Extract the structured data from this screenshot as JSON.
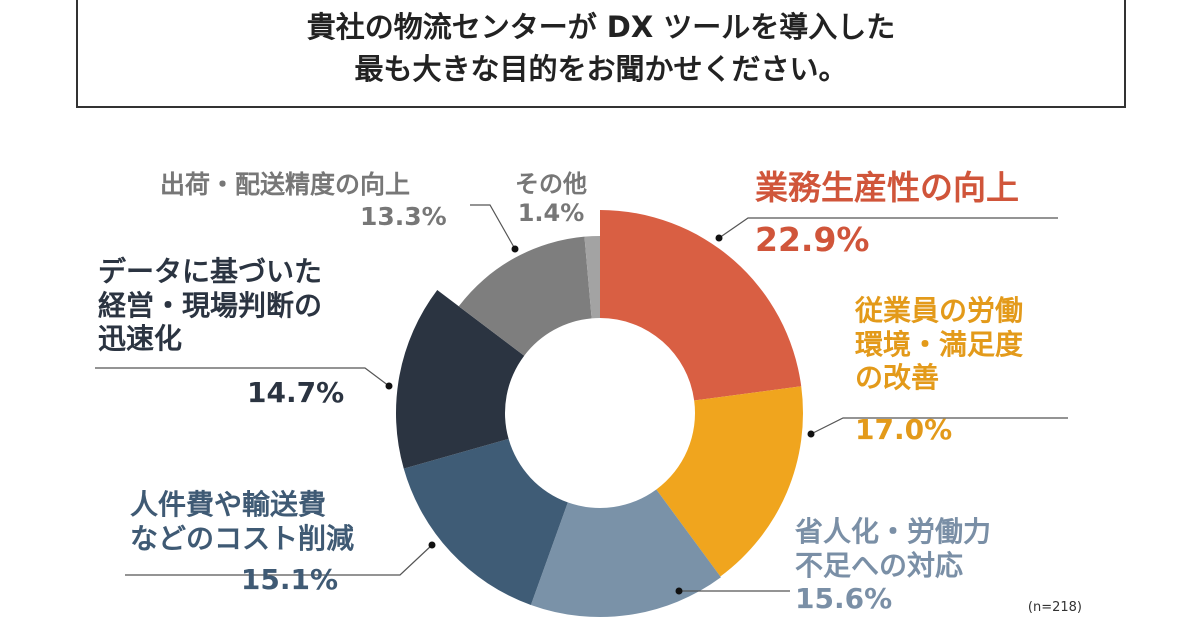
{
  "title": {
    "line1": "貴社の物流センターが DX ツールを導入した",
    "line2": "最も大きな目的をお聞かせください。"
  },
  "sample_note": "(n=218)",
  "chart_data": {
    "type": "pie",
    "donut": true,
    "title": "貴社の物流センターが DX ツールを導入した最も大きな目的をお聞かせください。",
    "unit": "%",
    "categories": [
      {
        "label_lines": [
          "業務生産性の向上"
        ],
        "value": 22.9,
        "value_text": "22.9%",
        "color": "#D95F43",
        "text_color": "#D0553A"
      },
      {
        "label_lines": [
          "従業員の労働",
          "環境・満足度",
          "の改善"
        ],
        "value": 17.0,
        "value_text": "17.0%",
        "color": "#F0A51E",
        "text_color": "#E39A1A"
      },
      {
        "label_lines": [
          "省人化・労働力",
          "不足への対応"
        ],
        "value": 15.6,
        "value_text": "15.6%",
        "color": "#7A92A8",
        "text_color": "#7A8FA6"
      },
      {
        "label_lines": [
          "人件費や輸送費",
          "などのコスト削減"
        ],
        "value": 15.1,
        "value_text": "15.1%",
        "color": "#3F5C76",
        "text_color": "#3F5A74"
      },
      {
        "label_lines": [
          "データに基づいた",
          "経営・現場判断の",
          "迅速化"
        ],
        "value": 14.7,
        "value_text": "14.7%",
        "color": "#2B3441",
        "text_color": "#2B3441"
      },
      {
        "label_lines": [
          "出荷・配送精度の向上"
        ],
        "value": 13.3,
        "value_text": "13.3%",
        "color": "#7E7E7E",
        "text_color": "#777777"
      },
      {
        "label_lines": [
          "その他"
        ],
        "value": 1.4,
        "value_text": "1.4%",
        "color": "#A3A3A3",
        "text_color": "#777777"
      }
    ]
  }
}
